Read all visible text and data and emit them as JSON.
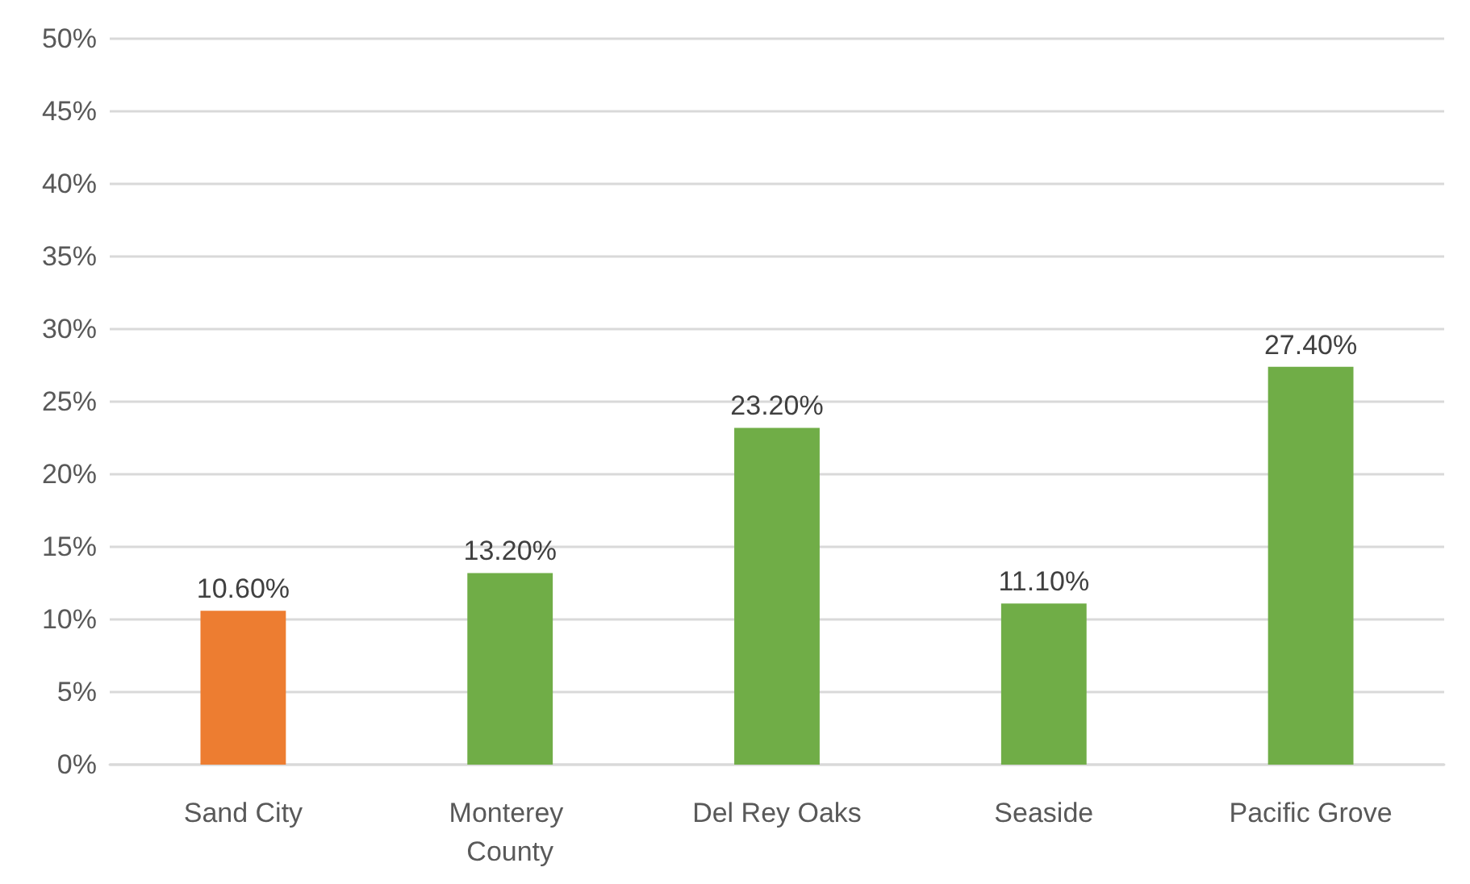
{
  "chart_data": {
    "type": "bar",
    "categories": [
      "Sand City",
      "Monterey County",
      "Del Rey Oaks",
      "Seaside",
      "Pacific Grove"
    ],
    "values": [
      10.6,
      13.2,
      23.2,
      11.1,
      27.4
    ],
    "colors": [
      "#ed7d31",
      "#70ad47",
      "#70ad47",
      "#70ad47",
      "#70ad47"
    ],
    "value_labels": [
      "10.60%",
      "13.20%",
      "23.20%",
      "11.10%",
      "27.40%"
    ],
    "ylim": [
      0,
      50
    ],
    "yticks": [
      {
        "value": 0,
        "label": "0%"
      },
      {
        "value": 5,
        "label": "5%"
      },
      {
        "value": 10,
        "label": "10%"
      },
      {
        "value": 15,
        "label": "15%"
      },
      {
        "value": 20,
        "label": "20%"
      },
      {
        "value": 25,
        "label": "25%"
      },
      {
        "value": 30,
        "label": "30%"
      },
      {
        "value": 35,
        "label": "35%"
      },
      {
        "value": 40,
        "label": "40%"
      },
      {
        "value": 45,
        "label": "45%"
      },
      {
        "value": 50,
        "label": "50%"
      }
    ],
    "grid": "y"
  }
}
